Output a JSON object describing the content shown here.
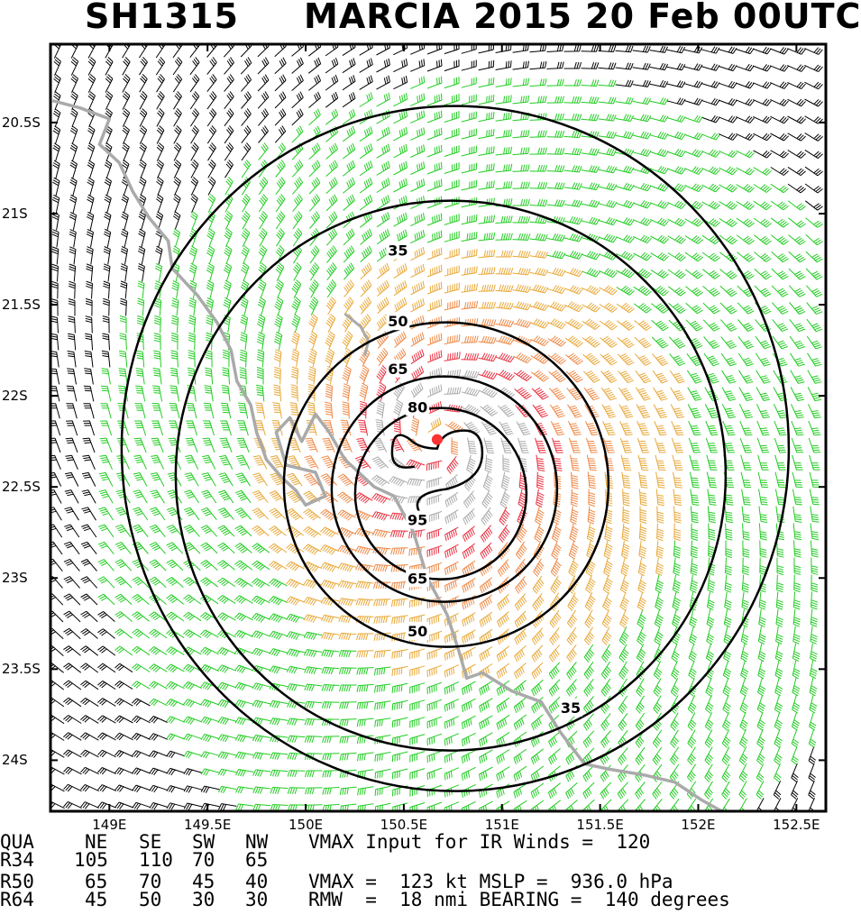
{
  "title": {
    "storm_id": "SH1315",
    "storm_info": "MARCIA 2015 20 Feb 00UTC"
  },
  "map": {
    "lon_range": [
      148.7,
      152.65
    ],
    "lat_range": [
      -24.28,
      -20.07
    ],
    "lat_ticks": [
      {
        "value": -20.5,
        "label": "20.5S"
      },
      {
        "value": -21.0,
        "label": "21S"
      },
      {
        "value": -21.5,
        "label": "21.5S"
      },
      {
        "value": -22.0,
        "label": "22S"
      },
      {
        "value": -22.5,
        "label": "22.5S"
      },
      {
        "value": -23.0,
        "label": "23S"
      },
      {
        "value": -23.5,
        "label": "23.5S"
      },
      {
        "value": -24.0,
        "label": "24S"
      }
    ],
    "lon_ticks": [
      {
        "value": 149.0,
        "label": "149E"
      },
      {
        "value": 149.5,
        "label": "149.5E"
      },
      {
        "value": 150.0,
        "label": "150E"
      },
      {
        "value": 150.5,
        "label": "150.5E"
      },
      {
        "value": 151.0,
        "label": "151E"
      },
      {
        "value": 151.5,
        "label": "151.5E"
      },
      {
        "value": 152.0,
        "label": "152E"
      },
      {
        "value": 152.5,
        "label": "152.5E"
      }
    ],
    "storm_center": {
      "lon": 150.67,
      "lat": -22.24
    },
    "colors": {
      "below_34kt": "#000000",
      "34_to_49kt": "#22cc22",
      "50_to_63kt": "#e8a838",
      "64_to_79kt": "#ee8844",
      "80_to_95kt": "#e83040",
      "above_95kt": "#aaaaaa",
      "coastline": "#aaaaaa",
      "center": "#ff3333"
    },
    "contour_labels": [
      {
        "label": "35",
        "lon": 150.47,
        "lat": -21.2
      },
      {
        "label": "50",
        "lon": 150.47,
        "lat": -21.59
      },
      {
        "label": "65",
        "lon": 150.47,
        "lat": -21.85
      },
      {
        "label": "80",
        "lon": 150.57,
        "lat": -22.06
      },
      {
        "label": "95",
        "lon": 150.57,
        "lat": -22.68
      },
      {
        "label": "65",
        "lon": 150.57,
        "lat": -23.0
      },
      {
        "label": "50",
        "lon": 150.57,
        "lat": -23.29
      },
      {
        "label": "35",
        "lon": 151.35,
        "lat": -23.71
      }
    ],
    "coastline": [
      [
        148.71,
        -20.38
      ],
      [
        148.85,
        -20.42
      ],
      [
        149.0,
        -20.48
      ],
      [
        148.95,
        -20.62
      ],
      [
        149.05,
        -20.72
      ],
      [
        149.12,
        -20.88
      ],
      [
        149.2,
        -21.02
      ],
      [
        149.3,
        -21.15
      ],
      [
        149.32,
        -21.3
      ],
      [
        149.45,
        -21.45
      ],
      [
        149.55,
        -21.6
      ],
      [
        149.62,
        -21.75
      ],
      [
        149.65,
        -21.92
      ],
      [
        149.72,
        -22.05
      ],
      [
        149.75,
        -22.2
      ],
      [
        149.8,
        -22.35
      ],
      [
        149.88,
        -22.45
      ],
      [
        149.95,
        -22.52
      ],
      [
        150.0,
        -22.6
      ],
      [
        150.1,
        -22.55
      ],
      [
        150.05,
        -22.42
      ],
      [
        149.9,
        -22.38
      ],
      [
        149.85,
        -22.2
      ],
      [
        149.92,
        -22.12
      ],
      [
        149.98,
        -22.25
      ],
      [
        150.05,
        -22.1
      ],
      [
        150.12,
        -22.2
      ],
      [
        150.2,
        -22.35
      ],
      [
        150.35,
        -22.5
      ],
      [
        150.45,
        -22.55
      ],
      [
        150.55,
        -22.75
      ],
      [
        150.62,
        -23.0
      ],
      [
        150.72,
        -23.2
      ],
      [
        150.78,
        -23.4
      ],
      [
        150.82,
        -23.55
      ],
      [
        150.9,
        -23.52
      ],
      [
        151.05,
        -23.62
      ],
      [
        151.2,
        -23.68
      ],
      [
        151.3,
        -23.85
      ],
      [
        151.42,
        -24.02
      ],
      [
        151.55,
        -24.05
      ],
      [
        151.72,
        -24.08
      ],
      [
        151.88,
        -24.12
      ],
      [
        152.02,
        -24.22
      ],
      [
        152.12,
        -24.28
      ]
    ],
    "inland_water": [
      [
        150.2,
        -21.55
      ],
      [
        150.28,
        -21.62
      ],
      [
        150.32,
        -21.7
      ],
      [
        150.3,
        -21.78
      ]
    ]
  },
  "info": {
    "rows": [
      {
        "c0": "QUA",
        "c1": "NE",
        "c2": "SE",
        "c3": "SW",
        "c4": "NW",
        "text": "VMAX Input for IR Winds =  120"
      },
      {
        "c0": "R34",
        "c1": "105",
        "c2": "110",
        "c3": "70",
        "c4": "65",
        "text": ""
      },
      {
        "c0": "R50",
        "c1": "65",
        "c2": "70",
        "c3": "45",
        "c4": "40",
        "text": "VMAX =  123 kt MSLP =  936.0 hPa"
      },
      {
        "c0": "R64",
        "c1": "45",
        "c2": "50",
        "c3": "30",
        "c4": "30",
        "text": "RMW  =  18 nmi BEARING =  140 degrees"
      }
    ]
  }
}
